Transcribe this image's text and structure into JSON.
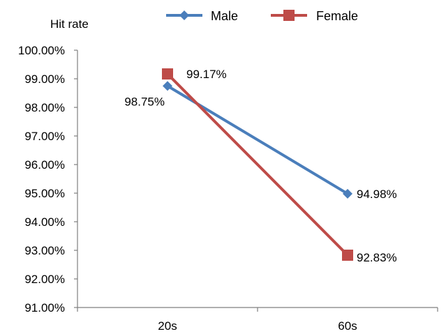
{
  "chart_data": {
    "type": "line",
    "title": "",
    "xlabel": "",
    "ylabel": "Hit rate",
    "categories": [
      "20s",
      "60s"
    ],
    "series": [
      {
        "name": "Male",
        "values": [
          98.75,
          94.98
        ],
        "labels": [
          "98.75%",
          "94.98%"
        ],
        "color": "#4a7ebb",
        "marker": "diamond"
      },
      {
        "name": "Female",
        "values": [
          99.17,
          92.83
        ],
        "labels": [
          "99.17%",
          "92.83%"
        ],
        "color": "#be4b48",
        "marker": "square"
      }
    ],
    "ylim": [
      91,
      100
    ],
    "yticks": [
      91,
      92,
      93,
      94,
      95,
      96,
      97,
      98,
      99,
      100
    ],
    "ytick_labels": [
      "91.00%",
      "92.00%",
      "93.00%",
      "94.00%",
      "95.00%",
      "96.00%",
      "97.00%",
      "98.00%",
      "99.00%",
      "100.00%"
    ],
    "grid": false,
    "legend_position": "top"
  }
}
